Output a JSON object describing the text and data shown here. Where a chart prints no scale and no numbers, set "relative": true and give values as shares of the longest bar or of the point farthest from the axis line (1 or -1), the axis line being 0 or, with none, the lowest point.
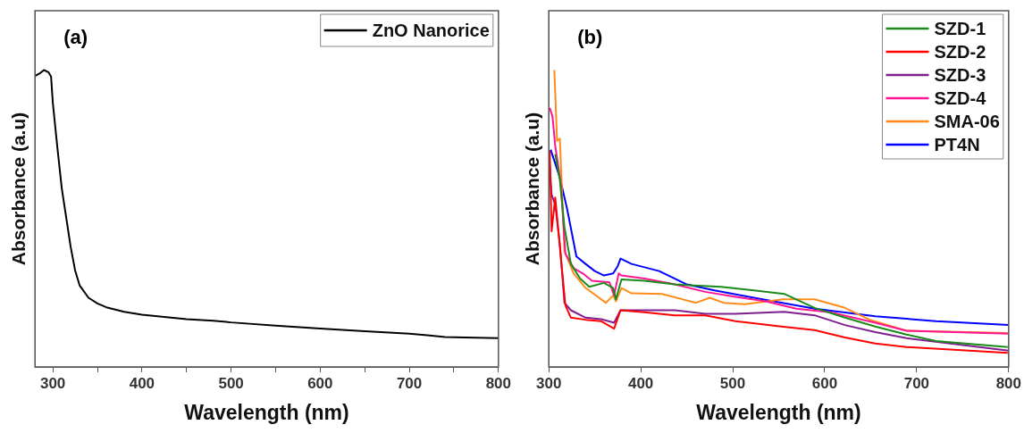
{
  "chart_data": [
    {
      "type": "line",
      "relative": true,
      "xlabel": "Wavelength (nm)",
      "ylabel": "Absorbance (a.u)",
      "annotations": [
        "(a)"
      ],
      "legend": "top right",
      "marker": "none",
      "line_style": "solid",
      "grid": false,
      "xlim": [
        280,
        800
      ],
      "xticks": [
        300,
        {
          "value": 350,
          "label": null
        },
        400,
        {
          "value": 450,
          "label": null
        },
        500,
        {
          "value": 550,
          "label": null
        },
        600,
        {
          "value": 650,
          "label": null
        },
        700,
        {
          "value": 750,
          "label": null
        },
        800
      ],
      "series": [
        {
          "name": "ZnO Nanorice",
          "color": "#000000",
          "x": [
            280,
            285,
            290,
            295,
            298,
            300,
            305,
            310,
            315,
            320,
            325,
            330,
            340,
            350,
            360,
            380,
            400,
            450,
            480,
            500,
            550,
            600,
            650,
            700,
            720,
            740,
            800
          ],
          "values": [
            0.98,
            0.988,
            1.0,
            0.993,
            0.978,
            0.889,
            0.741,
            0.602,
            0.503,
            0.404,
            0.325,
            0.275,
            0.233,
            0.214,
            0.201,
            0.186,
            0.176,
            0.161,
            0.156,
            0.15,
            0.139,
            0.129,
            0.12,
            0.112,
            0.107,
            0.101,
            0.097
          ]
        }
      ]
    },
    {
      "type": "line",
      "relative": true,
      "xlabel": "Wavelength (nm)",
      "ylabel": "Absorbance (a.u)",
      "annotations": [
        "(b)"
      ],
      "legend": "top right",
      "marker": "none",
      "line_style": "solid",
      "grid": false,
      "xlim": [
        300,
        800
      ],
      "xticks": [
        300,
        400,
        500,
        600,
        700,
        800
      ],
      "series": [
        {
          "name": "SZD-1",
          "color": "#1a8a1a",
          "x": [
            307,
            312,
            317,
            324,
            334,
            344,
            360,
            370,
            373,
            379,
            404,
            437,
            487,
            523,
            556,
            589,
            622,
            655,
            689,
            721,
            799
          ],
          "values": [
            0.717,
            0.63,
            0.471,
            0.347,
            0.298,
            0.27,
            0.283,
            0.266,
            0.228,
            0.295,
            0.29,
            0.278,
            0.27,
            0.258,
            0.246,
            0.199,
            0.166,
            0.136,
            0.109,
            0.087,
            0.067
          ]
        },
        {
          "name": "SZD-2",
          "color": "#ff0000",
          "x": [
            301,
            303,
            307,
            313,
            318,
            324,
            340,
            357,
            371,
            378,
            404,
            437,
            470,
            503,
            553,
            589,
            622,
            655,
            689,
            799
          ],
          "values": [
            0.73,
            0.457,
            0.571,
            0.372,
            0.208,
            0.166,
            0.159,
            0.154,
            0.129,
            0.191,
            0.184,
            0.174,
            0.174,
            0.154,
            0.136,
            0.124,
            0.099,
            0.079,
            0.067,
            0.047
          ]
        },
        {
          "name": "SZD-3",
          "color": "#7f1f8f",
          "x": [
            301,
            303,
            307,
            312,
            317,
            324,
            340,
            357,
            371,
            378,
            404,
            437,
            470,
            503,
            556,
            589,
            622,
            655,
            689,
            800
          ],
          "values": [
            0.68,
            0.581,
            0.546,
            0.414,
            0.216,
            0.191,
            0.166,
            0.161,
            0.149,
            0.191,
            0.191,
            0.191,
            0.179,
            0.179,
            0.186,
            0.174,
            0.141,
            0.117,
            0.097,
            0.055
          ]
        },
        {
          "name": "SZD-4",
          "color": "#ff1493",
          "x": [
            301,
            304,
            307,
            313,
            318,
            327,
            337,
            347,
            366,
            371,
            376,
            379,
            404,
            437,
            470,
            503,
            536,
            569,
            606,
            655,
            689,
            800
          ],
          "values": [
            0.873,
            0.844,
            0.744,
            0.62,
            0.382,
            0.333,
            0.315,
            0.29,
            0.285,
            0.241,
            0.315,
            0.308,
            0.298,
            0.278,
            0.253,
            0.236,
            0.221,
            0.196,
            0.184,
            0.149,
            0.122,
            0.112
          ]
        },
        {
          "name": "SMA-06",
          "color": "#ff8c1a",
          "x": [
            306,
            309,
            312,
            317,
            327,
            340,
            362,
            370,
            373,
            379,
            390,
            423,
            460,
            475,
            490,
            513,
            555,
            589,
            622,
            649,
            689,
            799
          ],
          "values": [
            1.0,
            0.762,
            0.769,
            0.39,
            0.315,
            0.266,
            0.216,
            0.241,
            0.221,
            0.266,
            0.248,
            0.246,
            0.216,
            0.233,
            0.216,
            0.211,
            0.228,
            0.228,
            0.199,
            0.159,
            0.122,
            0.114
          ]
        },
        {
          "name": "PT4N",
          "color": "#0000ff",
          "x": [
            302,
            312,
            320,
            330,
            340,
            350,
            360,
            370,
            375,
            378,
            390,
            420,
            450,
            480,
            523,
            589,
            655,
            721,
            800
          ],
          "values": [
            0.732,
            0.638,
            0.531,
            0.372,
            0.347,
            0.323,
            0.308,
            0.315,
            0.34,
            0.365,
            0.347,
            0.323,
            0.278,
            0.258,
            0.233,
            0.196,
            0.171,
            0.154,
            0.141
          ]
        }
      ]
    }
  ]
}
